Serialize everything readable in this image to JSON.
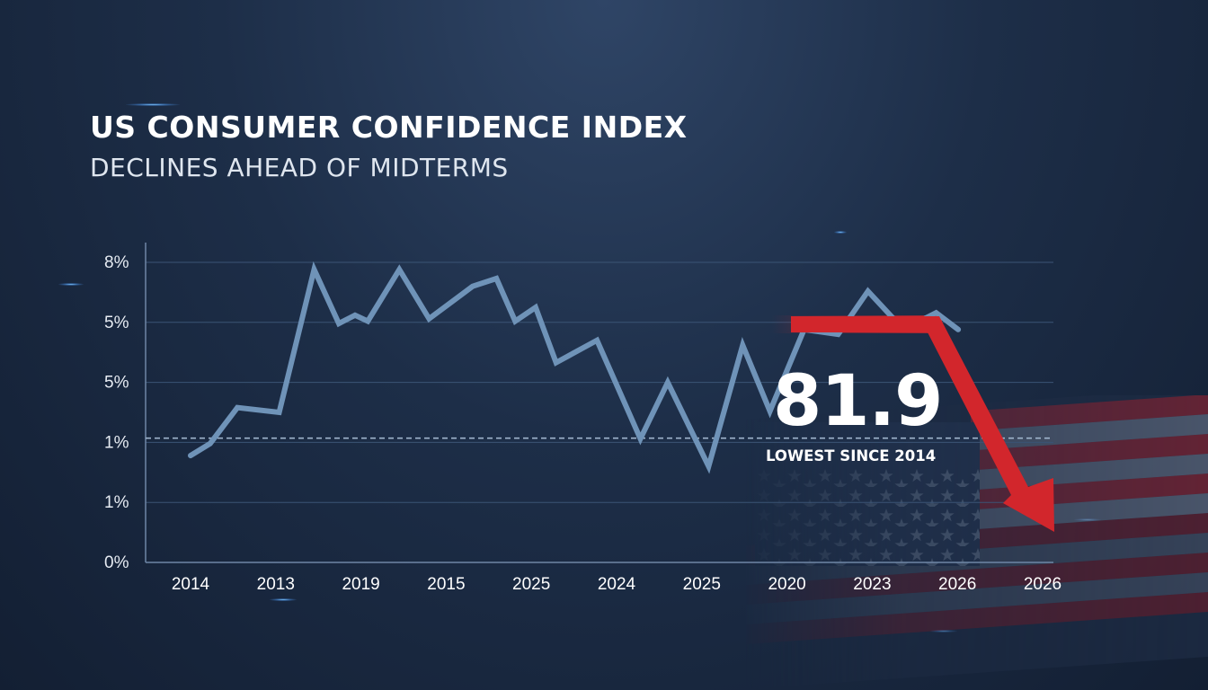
{
  "header": {
    "title": "US CONSUMER CONFIDENCE INDEX",
    "subtitle": "DECLINES AHEAD OF MIDTERMS"
  },
  "callout": {
    "value": "81.9",
    "caption": "LOWEST SINCE 2014"
  },
  "colors": {
    "line": "#6f93b8",
    "arrow": "#d2262c",
    "grid": "#3b5475",
    "reference_line": "#9fb4cc"
  },
  "chart_data": {
    "type": "line",
    "title": "US CONSUMER CONFIDENCE INDEX",
    "subtitle": "DECLINES AHEAD OF MIDTERMS",
    "y_tick_labels": [
      "8%",
      "5%",
      "5%",
      "1%",
      "1%",
      "0%"
    ],
    "x_tick_labels": [
      "2014",
      "2013",
      "2019",
      "2015",
      "2025",
      "2024",
      "2025",
      "2020",
      "2023",
      "2026",
      "2026"
    ],
    "ylim": [
      0,
      5
    ],
    "grid": "horizontal",
    "reference_line_y": 2.07,
    "series": [
      {
        "values": [
          [
            0.0,
            1.78
          ],
          [
            0.23,
            1.98
          ],
          [
            0.55,
            2.58
          ],
          [
            1.04,
            2.5
          ],
          [
            1.45,
            4.88
          ],
          [
            1.74,
            3.98
          ],
          [
            1.93,
            4.12
          ],
          [
            2.08,
            4.02
          ],
          [
            2.45,
            4.88
          ],
          [
            2.8,
            4.06
          ],
          [
            3.31,
            4.6
          ],
          [
            3.59,
            4.73
          ],
          [
            3.81,
            4.02
          ],
          [
            4.05,
            4.25
          ],
          [
            4.29,
            3.33
          ],
          [
            4.77,
            3.7
          ],
          [
            5.28,
            2.06
          ],
          [
            5.6,
            3.0
          ],
          [
            6.08,
            1.6
          ],
          [
            6.48,
            3.62
          ],
          [
            6.8,
            2.52
          ],
          [
            7.2,
            3.88
          ],
          [
            7.6,
            3.8
          ],
          [
            7.95,
            4.52
          ],
          [
            8.29,
            4.0
          ],
          [
            8.53,
            4.0
          ],
          [
            8.75,
            4.16
          ],
          [
            9.01,
            3.88
          ]
        ]
      }
    ],
    "annotation": {
      "value": "81.9",
      "label": "LOWEST SINCE 2014",
      "trend": "down"
    }
  }
}
